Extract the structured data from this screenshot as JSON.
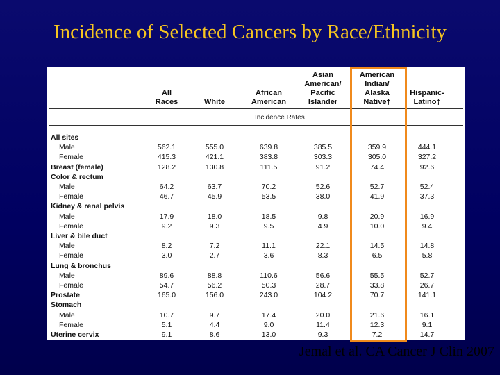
{
  "title": "Incidence of Selected Cancers by Race/Ethnicity",
  "citation": "Jemal et al. CA Cancer J Clin 2007",
  "table": {
    "columns": [
      {
        "lines": [
          "All",
          "Races"
        ]
      },
      {
        "lines": [
          "White"
        ]
      },
      {
        "lines": [
          "African",
          "American"
        ]
      },
      {
        "lines": [
          "Asian",
          "American/",
          "Pacific",
          "Islander"
        ]
      },
      {
        "lines": [
          "American",
          "Indian/",
          "Alaska",
          "Native†"
        ]
      },
      {
        "lines": [
          "Hispanic-",
          "Latino‡"
        ]
      }
    ],
    "subheader": "Incidence Rates",
    "rows": [
      {
        "label": "All sites",
        "section": true,
        "values": []
      },
      {
        "label": "Male",
        "values": [
          "562.1",
          "555.0",
          "639.8",
          "385.5",
          "359.9",
          "444.1"
        ]
      },
      {
        "label": "Female",
        "values": [
          "415.3",
          "421.1",
          "383.8",
          "303.3",
          "305.0",
          "327.2"
        ]
      },
      {
        "label": "Breast (female)",
        "section": true,
        "values": [
          "128.2",
          "130.8",
          "111.5",
          "91.2",
          "74.4",
          "92.6"
        ]
      },
      {
        "label": "Color & rectum",
        "section": true,
        "values": []
      },
      {
        "label": "Male",
        "values": [
          "64.2",
          "63.7",
          "70.2",
          "52.6",
          "52.7",
          "52.4"
        ]
      },
      {
        "label": "Female",
        "values": [
          "46.7",
          "45.9",
          "53.5",
          "38.0",
          "41.9",
          "37.3"
        ]
      },
      {
        "label": "Kidney & renal pelvis",
        "section": true,
        "values": []
      },
      {
        "label": "Male",
        "values": [
          "17.9",
          "18.0",
          "18.5",
          "9.8",
          "20.9",
          "16.9"
        ]
      },
      {
        "label": "Female",
        "values": [
          "9.2",
          "9.3",
          "9.5",
          "4.9",
          "10.0",
          "9.4"
        ]
      },
      {
        "label": "Liver & bile duct",
        "section": true,
        "values": []
      },
      {
        "label": "Male",
        "values": [
          "8.2",
          "7.2",
          "11.1",
          "22.1",
          "14.5",
          "14.8"
        ]
      },
      {
        "label": "Female",
        "values": [
          "3.0",
          "2.7",
          "3.6",
          "8.3",
          "6.5",
          "5.8"
        ]
      },
      {
        "label": "Lung & bronchus",
        "section": true,
        "values": []
      },
      {
        "label": "Male",
        "values": [
          "89.6",
          "88.8",
          "110.6",
          "56.6",
          "55.5",
          "52.7"
        ]
      },
      {
        "label": "Female",
        "values": [
          "54.7",
          "56.2",
          "50.3",
          "28.7",
          "33.8",
          "26.7"
        ]
      },
      {
        "label": "Prostate",
        "section": true,
        "values": [
          "165.0",
          "156.0",
          "243.0",
          "104.2",
          "70.7",
          "141.1"
        ]
      },
      {
        "label": "Stomach",
        "section": true,
        "values": []
      },
      {
        "label": "Male",
        "values": [
          "10.7",
          "9.7",
          "17.4",
          "20.0",
          "21.6",
          "16.1"
        ]
      },
      {
        "label": "Female",
        "values": [
          "5.1",
          "4.4",
          "9.0",
          "11.4",
          "12.3",
          "9.1"
        ]
      },
      {
        "label": "Uterine cervix",
        "section": true,
        "values": [
          "9.1",
          "8.6",
          "13.0",
          "9.3",
          "7.2",
          "14.7"
        ]
      }
    ]
  },
  "colors": {
    "title": "#f6c520",
    "highlight": "#f08a1c",
    "background": "#00006a"
  }
}
